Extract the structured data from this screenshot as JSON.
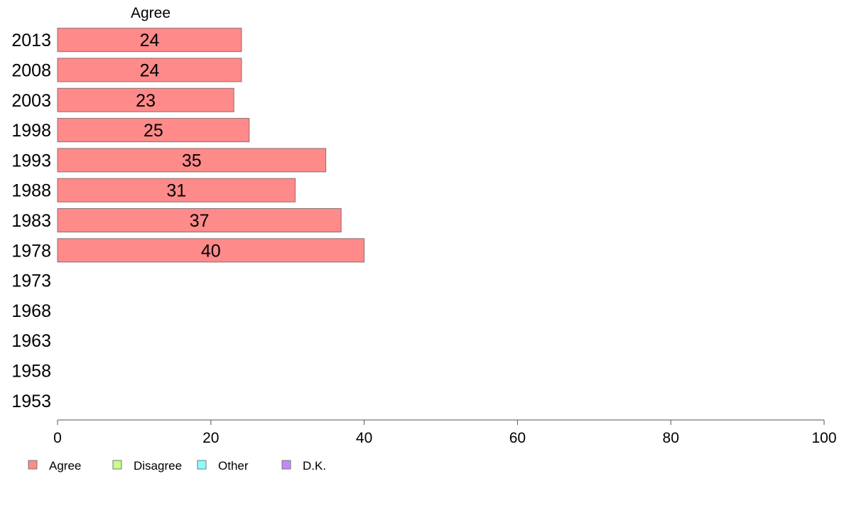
{
  "chart_data": {
    "type": "bar",
    "orientation": "horizontal",
    "stacked": true,
    "series_title": "Agree",
    "categories": [
      "2013",
      "2008",
      "2003",
      "1998",
      "1993",
      "1988",
      "1983",
      "1978",
      "1973",
      "1968",
      "1963",
      "1958",
      "1953"
    ],
    "series": [
      {
        "name": "Agree",
        "color": "#ff8a8a",
        "values": [
          24,
          24,
          23,
          25,
          35,
          31,
          37,
          40,
          null,
          null,
          null,
          null,
          null
        ],
        "labels": [
          "24",
          "24",
          "23",
          "25",
          "35",
          "31",
          "37",
          "40",
          "",
          "",
          "",
          "",
          ""
        ]
      }
    ],
    "legend": [
      {
        "label": "Agree",
        "color": "#ff8a8a"
      },
      {
        "label": "Disagree",
        "color": "#c6ff8a"
      },
      {
        "label": "Other",
        "color": "#8affff"
      },
      {
        "label": "D.K.",
        "color": "#bf8aff"
      }
    ],
    "legend_position": "bottom-left",
    "xlim": [
      0,
      100
    ],
    "xticks": [
      0,
      20,
      40,
      60,
      80,
      100
    ],
    "xtick_labels": [
      "0",
      "20",
      "40",
      "60",
      "80",
      "100"
    ],
    "grid": false
  }
}
